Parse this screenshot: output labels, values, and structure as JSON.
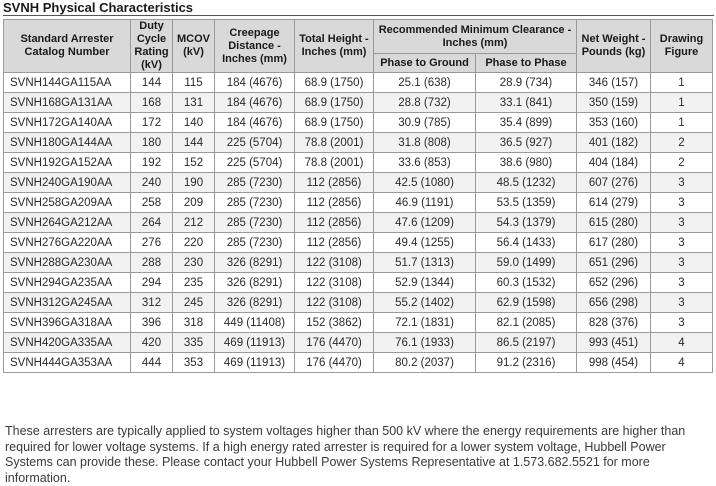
{
  "title": "SVNH Physical Characteristics",
  "headers": {
    "catalog": "Standard Arrester Catalog Number",
    "duty": "Duty Cycle Rating (kV)",
    "mcov": "MCOV (kV)",
    "creepage": "Creepage Distance - Inches (mm)",
    "height": "Total Height - Inches (mm)",
    "clearance": "Recommended Minimum Clearance - Inches (mm)",
    "clear_ground": "Phase to Ground",
    "clear_phase": "Phase to Phase",
    "weight": "Net Weight - Pounds (kg)",
    "figure": "Drawing Figure"
  },
  "rows": [
    [
      "SVNH144GA115AA",
      "144",
      "115",
      "184 (4676)",
      "68.9 (1750)",
      "25.1 (638)",
      "28.9 (734)",
      "346 (157)",
      "1"
    ],
    [
      "SVNH168GA131AA",
      "168",
      "131",
      "184 (4676)",
      "68.9 (1750)",
      "28.8 (732)",
      "33.1 (841)",
      "350 (159)",
      "1"
    ],
    [
      "SVNH172GA140AA",
      "172",
      "140",
      "184 (4676)",
      "68.9 (1750)",
      "30.9 (785)",
      "35.4 (899)",
      "353 (160)",
      "1"
    ],
    [
      "SVNH180GA144AA",
      "180",
      "144",
      "225 (5704)",
      "78.8 (2001)",
      "31.8 (808)",
      "36.5 (927)",
      "401 (182)",
      "2"
    ],
    [
      "SVNH192GA152AA",
      "192",
      "152",
      "225 (5704)",
      "78.8 (2001)",
      "33.6 (853)",
      "38.6 (980)",
      "404 (184)",
      "2"
    ],
    [
      "SVNH240GA190AA",
      "240",
      "190",
      "285 (7230)",
      "112 (2856)",
      "42.5 (1080)",
      "48.5 (1232)",
      "607 (276)",
      "3"
    ],
    [
      "SVNH258GA209AA",
      "258",
      "209",
      "285 (7230)",
      "112 (2856)",
      "46.9 (1191)",
      "53.5 (1359)",
      "614 (279)",
      "3"
    ],
    [
      "SVNH264GA212AA",
      "264",
      "212",
      "285 (7230)",
      "112 (2856)",
      "47.6 (1209)",
      "54.3 (1379)",
      "615 (280)",
      "3"
    ],
    [
      "SVNH276GA220AA",
      "276",
      "220",
      "285 (7230)",
      "112 (2856)",
      "49.4 (1255)",
      "56.4 (1433)",
      "617 (280)",
      "3"
    ],
    [
      "SVNH288GA230AA",
      "288",
      "230",
      "326 (8291)",
      "122 (3108)",
      "51.7 (1313)",
      "59.0 (1499)",
      "651 (296)",
      "3"
    ],
    [
      "SVNH294GA235AA",
      "294",
      "235",
      "326 (8291)",
      "122 (3108)",
      "52.9 (1344)",
      "60.3 (1532)",
      "652 (296)",
      "3"
    ],
    [
      "SVNH312GA245AA",
      "312",
      "245",
      "326 (8291)",
      "122 (3108)",
      "55.2 (1402)",
      "62.9 (1598)",
      "656 (298)",
      "3"
    ],
    [
      "SVNH396GA318AA",
      "396",
      "318",
      "449 (11408)",
      "152 (3862)",
      "72.1 (1831)",
      "82.1 (2085)",
      "828 (376)",
      "3"
    ],
    [
      "SVNH420GA335AA",
      "420",
      "335",
      "469 (11913)",
      "176 (4470)",
      "76.1 (1933)",
      "86.5 (2197)",
      "993 (451)",
      "4"
    ],
    [
      "SVNH444GA353AA",
      "444",
      "353",
      "469 (11913)",
      "176 (4470)",
      "80.2 (2037)",
      "91.2 (2316)",
      "998 (454)",
      "4"
    ]
  ],
  "footnote": "These arresters are typically applied to system voltages higher than 500 kV where the energy requirements are higher than required for lower voltage systems. If a high energy rated arrester is required for a lower system voltage, Hubbell Power Systems can provide these.  Please contact your Hubbell Power Systems Representative at 1.573.682.5521 for more information."
}
